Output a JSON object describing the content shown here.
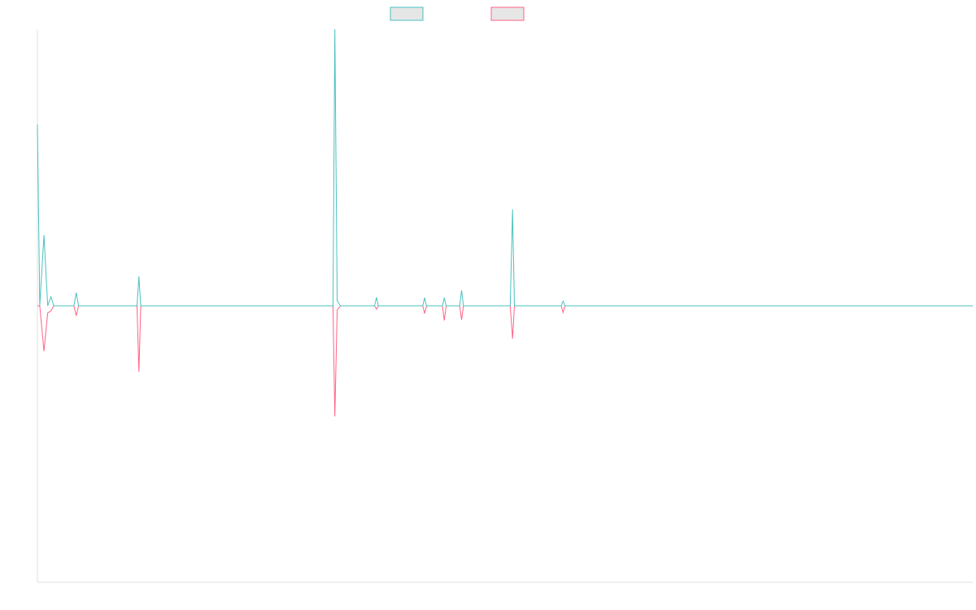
{
  "chart_data": {
    "type": "line",
    "title": "",
    "xlabel": "",
    "ylabel": "",
    "legend": {
      "placement": "top-center",
      "entries": [
        {
          "label": "",
          "stroke": "#4bc0c0",
          "fill": "#e6e6e6"
        },
        {
          "label": "",
          "stroke": "#ff6384",
          "fill": "#e6e6e6"
        }
      ]
    },
    "grid": false,
    "xlim": [
      0,
      200
    ],
    "ylim": [
      -100,
      100
    ],
    "series": [
      {
        "color": "#4bc0c0",
        "points": [
          [
            0,
            65.6
          ],
          [
            0.5,
            0
          ],
          [
            1.4,
            25.6
          ],
          [
            2.2,
            0
          ],
          [
            2.9,
            3.3
          ],
          [
            3.5,
            0
          ],
          [
            7.8,
            0
          ],
          [
            8.3,
            4.7
          ],
          [
            8.8,
            0
          ],
          [
            21.3,
            0
          ],
          [
            21.7,
            10.6
          ],
          [
            22.1,
            0
          ],
          [
            63.2,
            0
          ],
          [
            63.6,
            100
          ],
          [
            64.1,
            1.8
          ],
          [
            64.8,
            0
          ],
          [
            72.1,
            0
          ],
          [
            72.5,
            3.1
          ],
          [
            72.9,
            0
          ],
          [
            82.4,
            0
          ],
          [
            82.8,
            2.9
          ],
          [
            83.2,
            0
          ],
          [
            86.6,
            0
          ],
          [
            87.0,
            2.9
          ],
          [
            87.4,
            0
          ],
          [
            90.3,
            0
          ],
          [
            90.7,
            5.6
          ],
          [
            91.1,
            0
          ],
          [
            101.1,
            0
          ],
          [
            101.6,
            34.9
          ],
          [
            102.0,
            0
          ],
          [
            112.0,
            0
          ],
          [
            112.4,
            1.7
          ],
          [
            112.8,
            0
          ],
          [
            200,
            0
          ]
        ]
      },
      {
        "color": "#ff6384",
        "points": [
          [
            0,
            0
          ],
          [
            0.5,
            0
          ],
          [
            1.4,
            -16.4
          ],
          [
            2.2,
            -2.6
          ],
          [
            2.9,
            -1.8
          ],
          [
            3.5,
            0
          ],
          [
            7.8,
            0
          ],
          [
            8.3,
            -3.6
          ],
          [
            8.8,
            0
          ],
          [
            21.3,
            0
          ],
          [
            21.7,
            -23.9
          ],
          [
            22.1,
            0
          ],
          [
            63.2,
            0
          ],
          [
            63.6,
            -40.0
          ],
          [
            64.1,
            -1.5
          ],
          [
            64.8,
            0
          ],
          [
            72.1,
            0
          ],
          [
            72.5,
            -1.2
          ],
          [
            72.9,
            0
          ],
          [
            82.4,
            0
          ],
          [
            82.8,
            -2.8
          ],
          [
            83.2,
            0
          ],
          [
            86.6,
            0
          ],
          [
            87.0,
            -5.3
          ],
          [
            87.4,
            0
          ],
          [
            90.3,
            0
          ],
          [
            90.7,
            -5.1
          ],
          [
            91.1,
            0
          ],
          [
            101.1,
            0
          ],
          [
            101.6,
            -11.9
          ],
          [
            102.0,
            0
          ],
          [
            112.0,
            0
          ],
          [
            112.4,
            -2.4
          ],
          [
            112.8,
            0
          ],
          [
            200,
            0
          ]
        ]
      }
    ]
  }
}
